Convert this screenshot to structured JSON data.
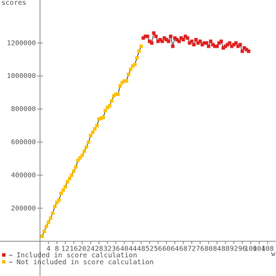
{
  "chart_data": {
    "type": "scatter",
    "y_label": "scores",
    "x_label": "w",
    "xlim": [
      -19,
      112
    ],
    "ylim": [
      -210000,
      1460000
    ],
    "xticks": [
      4,
      8,
      12,
      16,
      20,
      24,
      28,
      32,
      36,
      40,
      44,
      48,
      52,
      56,
      60,
      64,
      68,
      72,
      76,
      80,
      84,
      88,
      92,
      96,
      100,
      104,
      108
    ],
    "yticks": [
      200000,
      400000,
      600000,
      800000,
      1000000,
      1200000
    ],
    "series": [
      {
        "name": "Included in score calculation",
        "color": "#e02020",
        "x": [
          49,
          50,
          51,
          52,
          53,
          54,
          55,
          56,
          57,
          58,
          59,
          60,
          61,
          62,
          63,
          64,
          65,
          66,
          67,
          68,
          69,
          70,
          71,
          72,
          73,
          74,
          75,
          76,
          77,
          78,
          79,
          80,
          81,
          82,
          83,
          84,
          85,
          86,
          87,
          88,
          89,
          90,
          91,
          92,
          93,
          94,
          95,
          96,
          97,
          98,
          99
        ],
        "values": [
          1230000,
          1240000,
          1240000,
          1210000,
          1200000,
          1260000,
          1240000,
          1210000,
          1220000,
          1210000,
          1230000,
          1220000,
          1210000,
          1240000,
          1180000,
          1230000,
          1220000,
          1210000,
          1230000,
          1220000,
          1240000,
          1230000,
          1200000,
          1210000,
          1190000,
          1220000,
          1200000,
          1210000,
          1190000,
          1200000,
          1200000,
          1180000,
          1210000,
          1190000,
          1180000,
          1180000,
          1200000,
          1210000,
          1170000,
          1180000,
          1190000,
          1200000,
          1180000,
          1190000,
          1200000,
          1180000,
          1190000,
          1150000,
          1170000,
          1160000,
          1150000
        ]
      },
      {
        "name": "Not included in score calculation",
        "color": "#ffc000",
        "x": [
          1,
          2,
          3,
          4,
          5,
          6,
          7,
          8,
          9,
          10,
          11,
          12,
          13,
          14,
          15,
          16,
          17,
          18,
          19,
          20,
          21,
          22,
          23,
          24,
          25,
          26,
          27,
          28,
          29,
          30,
          31,
          32,
          33,
          34,
          35,
          36,
          37,
          38,
          39,
          40,
          41,
          42,
          43,
          44,
          45,
          46,
          47,
          48
        ],
        "values": [
          30000,
          60000,
          90000,
          115000,
          140000,
          170000,
          210000,
          235000,
          250000,
          290000,
          310000,
          330000,
          360000,
          380000,
          400000,
          425000,
          450000,
          490000,
          505000,
          520000,
          545000,
          570000,
          600000,
          640000,
          660000,
          680000,
          700000,
          740000,
          745000,
          750000,
          790000,
          810000,
          820000,
          850000,
          880000,
          890000,
          890000,
          940000,
          960000,
          970000,
          970000,
          1010000,
          1040000,
          1060000,
          1070000,
          1110000,
          1150000,
          1180000
        ]
      }
    ]
  }
}
